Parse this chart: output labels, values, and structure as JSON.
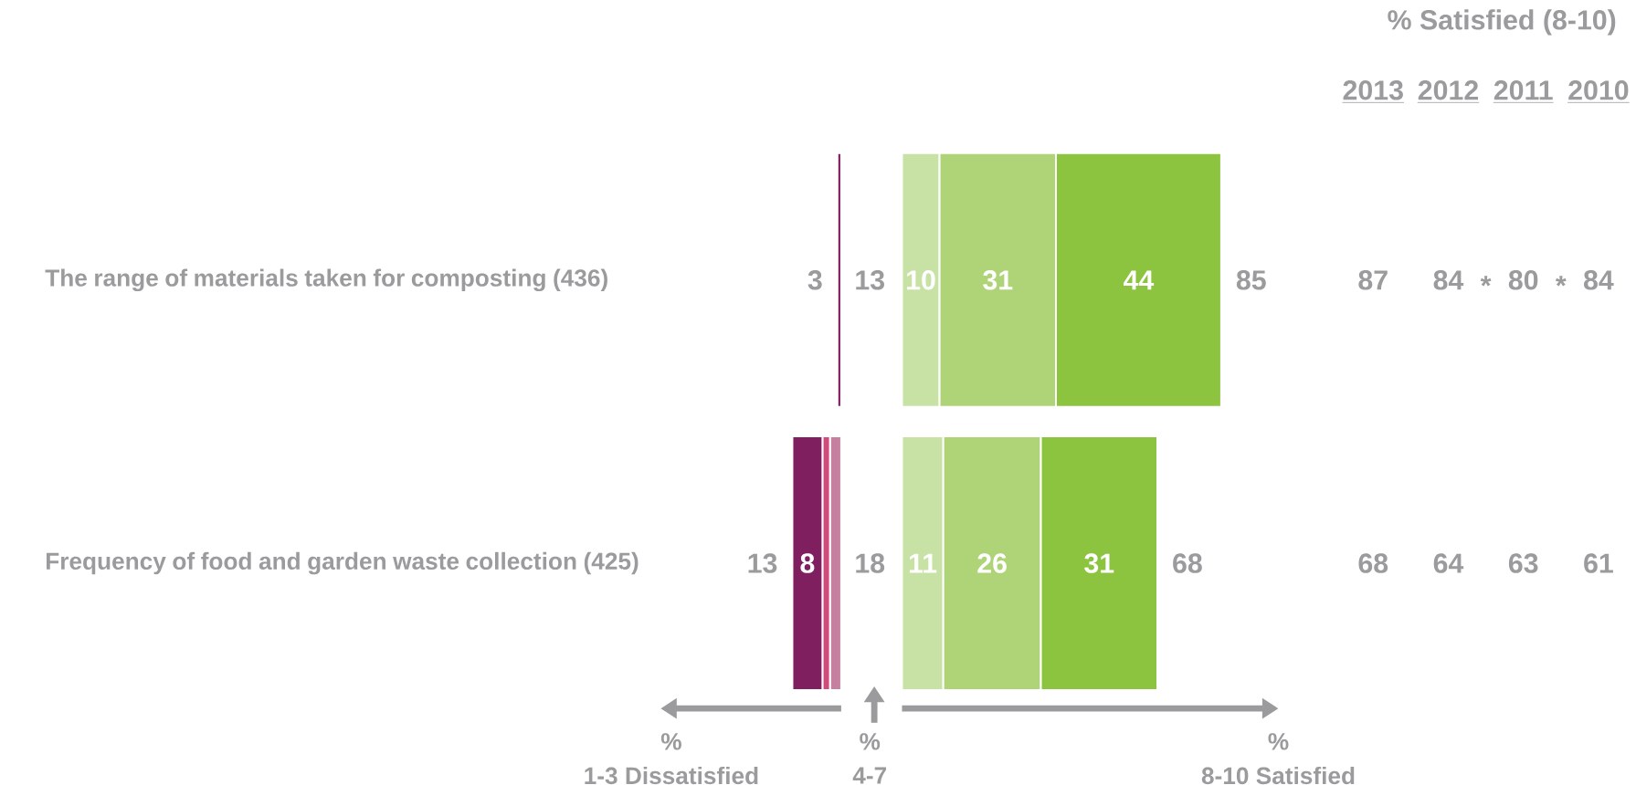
{
  "chart_data": [
    {
      "type": "bar",
      "orientation": "horizontal",
      "stacked": true,
      "categories": [
        "The range of materials taken for composting (436)",
        "Frequency of food and garden waste collection (425)"
      ],
      "series": [
        {
          "color": "#c6809f",
          "values": [
            null,
            3
          ]
        },
        {
          "color": "#d04a7c",
          "values": [
            null,
            2
          ]
        },
        {
          "color": "#7f1f5f",
          "values": [
            1,
            8
          ],
          "value_labels": [
            null,
            "8"
          ]
        }
      ],
      "totals": [
        "3",
        "13"
      ],
      "xlabel": "1-3 Dissatisfied",
      "annotations": [
        "%"
      ],
      "tick_labels": "y"
    },
    {
      "type": "other",
      "values": [
        13,
        18
      ],
      "data_labels": true,
      "xlabel": "4-7",
      "annotations": [
        "%"
      ]
    },
    {
      "type": "bar",
      "orientation": "horizontal",
      "stacked": true,
      "categories": [
        null,
        null
      ],
      "series": [
        {
          "color": "#c8e2a5",
          "values": [
            10,
            11
          ]
        },
        {
          "color": "#aed477",
          "values": [
            31,
            26
          ]
        },
        {
          "color": "#8cc43f",
          "values": [
            44,
            31
          ]
        }
      ],
      "data_labels": true,
      "totals": [
        "85",
        "68"
      ],
      "xlabel": "8-10 Satisfied",
      "annotations": [
        "%"
      ],
      "tick_labels": false
    },
    {
      "type": "heatmap",
      "title": "% Satisfied (8-10)",
      "categories": [
        "2013",
        "2012",
        "2011",
        "2010"
      ],
      "y_categories": [
        null,
        null
      ],
      "cells": [
        [
          87,
          84,
          80,
          84
        ],
        [
          68,
          64,
          63,
          61
        ]
      ],
      "data_labels": true,
      "annotations": [
        "*",
        "*"
      ]
    }
  ]
}
